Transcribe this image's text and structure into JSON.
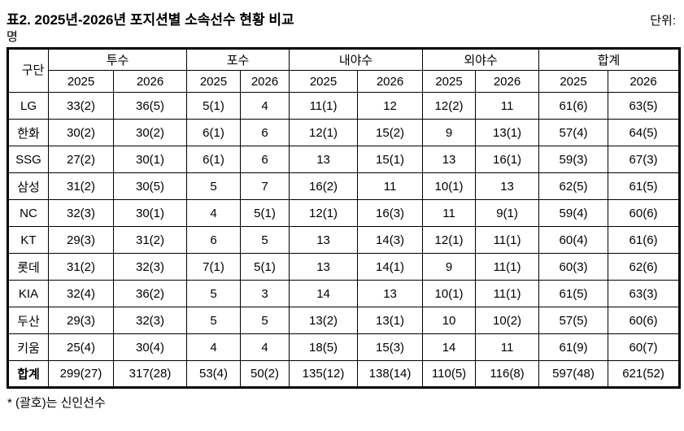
{
  "title": "표2. 2025년-2026년 포지션별 소속선수 현황 비교",
  "unit_label": "단위:",
  "unit_value": "명",
  "table": {
    "corner_header": "구단",
    "groups": [
      {
        "label": "투수"
      },
      {
        "label": "포수"
      },
      {
        "label": "내야수"
      },
      {
        "label": "외야수"
      },
      {
        "label": "합계"
      }
    ],
    "year_headers": [
      "2025",
      "2026"
    ],
    "rows": [
      {
        "team": "LG",
        "values": [
          "33(2)",
          "36(5)",
          "5(1)",
          "4",
          "11(1)",
          "12",
          "12(2)",
          "11",
          "61(6)",
          "63(5)"
        ]
      },
      {
        "team": "한화",
        "values": [
          "30(2)",
          "30(2)",
          "6(1)",
          "6",
          "12(1)",
          "15(2)",
          "9",
          "13(1)",
          "57(4)",
          "64(5)"
        ]
      },
      {
        "team": "SSG",
        "values": [
          "27(2)",
          "30(1)",
          "6(1)",
          "6",
          "13",
          "15(1)",
          "13",
          "16(1)",
          "59(3)",
          "67(3)"
        ]
      },
      {
        "team": "삼성",
        "values": [
          "31(2)",
          "30(5)",
          "5",
          "7",
          "16(2)",
          "11",
          "10(1)",
          "13",
          "62(5)",
          "61(5)"
        ]
      },
      {
        "team": "NC",
        "values": [
          "32(3)",
          "30(1)",
          "4",
          "5(1)",
          "12(1)",
          "16(3)",
          "11",
          "9(1)",
          "59(4)",
          "60(6)"
        ]
      },
      {
        "team": "KT",
        "values": [
          "29(3)",
          "31(2)",
          "6",
          "5",
          "13",
          "14(3)",
          "12(1)",
          "11(1)",
          "60(4)",
          "61(6)"
        ]
      },
      {
        "team": "롯데",
        "values": [
          "31(2)",
          "32(3)",
          "7(1)",
          "5(1)",
          "13",
          "14(1)",
          "9",
          "11(1)",
          "60(3)",
          "62(6)"
        ]
      },
      {
        "team": "KIA",
        "values": [
          "32(4)",
          "36(2)",
          "5",
          "3",
          "14",
          "13",
          "10(1)",
          "11(1)",
          "61(5)",
          "63(3)"
        ]
      },
      {
        "team": "두산",
        "values": [
          "29(3)",
          "32(3)",
          "5",
          "5",
          "13(2)",
          "13(1)",
          "10",
          "10(2)",
          "57(5)",
          "60(6)"
        ]
      },
      {
        "team": "키움",
        "values": [
          "25(4)",
          "30(4)",
          "4",
          "4",
          "18(5)",
          "15(3)",
          "14",
          "11",
          "61(9)",
          "60(7)"
        ]
      }
    ],
    "total_row": {
      "team": "합계",
      "values": [
        "299(27)",
        "317(28)",
        "53(4)",
        "50(2)",
        "135(12)",
        "138(14)",
        "110(5)",
        "116(8)",
        "597(48)",
        "621(52)"
      ]
    }
  },
  "footnote": "* (괄호)는 신인선수"
}
